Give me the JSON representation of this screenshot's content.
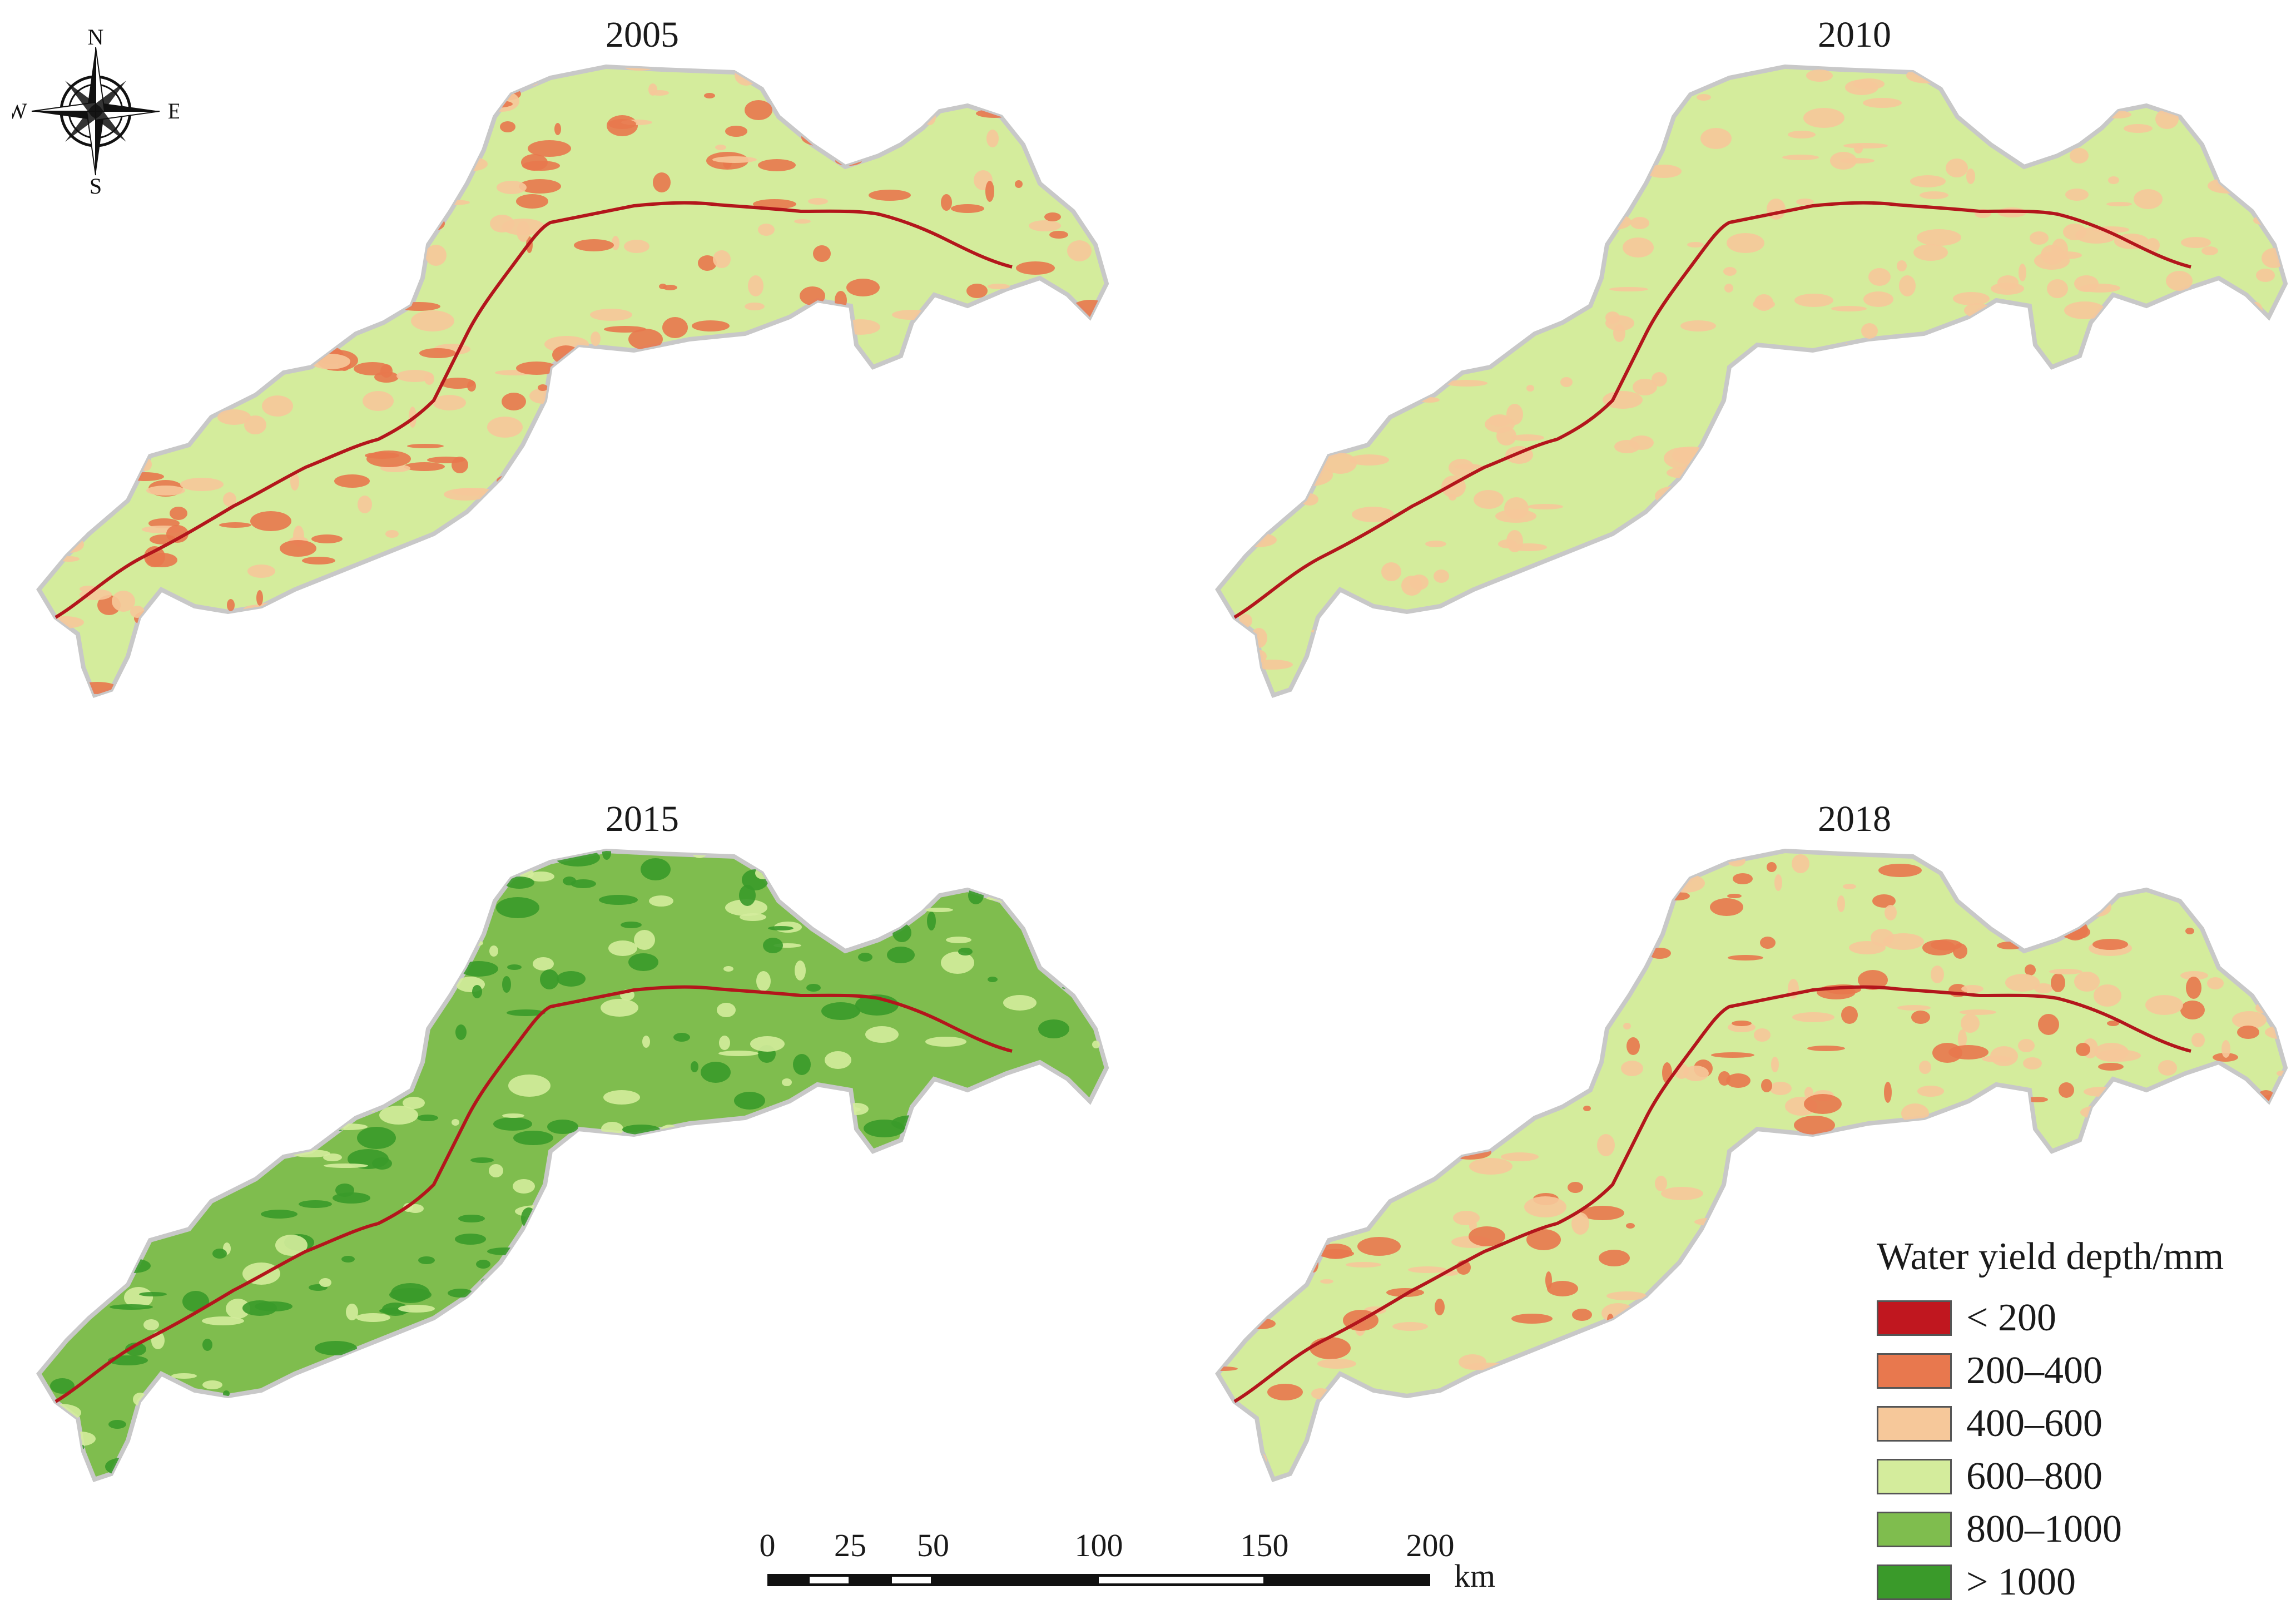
{
  "panels": [
    {
      "title": "2005"
    },
    {
      "title": "2010"
    },
    {
      "title": "2015"
    },
    {
      "title": "2018"
    }
  ],
  "compass": {
    "n": "N",
    "s": "S",
    "e": "E",
    "w": "W"
  },
  "legend": {
    "title": "Water yield depth/mm",
    "items": [
      {
        "label": "< 200",
        "color": "#c0171f"
      },
      {
        "label": "200–400",
        "color": "#e8784e"
      },
      {
        "label": "400–600",
        "color": "#f6c89a"
      },
      {
        "label": "600–800",
        "color": "#d4ec9c"
      },
      {
        "label": "800–1000",
        "color": "#7fbd4e"
      },
      {
        "label": "> 1000",
        "color": "#3a9a2a"
      }
    ]
  },
  "scalebar": {
    "ticks": [
      "0",
      "25",
      "50",
      "100",
      "150",
      "200"
    ],
    "unit": "km"
  },
  "map_style": {
    "boundary_color": "#c8c8c8",
    "river_color": "#b3161c",
    "dominant_classes": {
      "2005": [
        "600–800",
        "400–600",
        "200–400"
      ],
      "2010": [
        "600–800",
        "400–600"
      ],
      "2015": [
        "800–1000",
        "> 1000",
        "600–800"
      ],
      "2018": [
        "600–800",
        "400–600",
        "200–400"
      ]
    }
  }
}
